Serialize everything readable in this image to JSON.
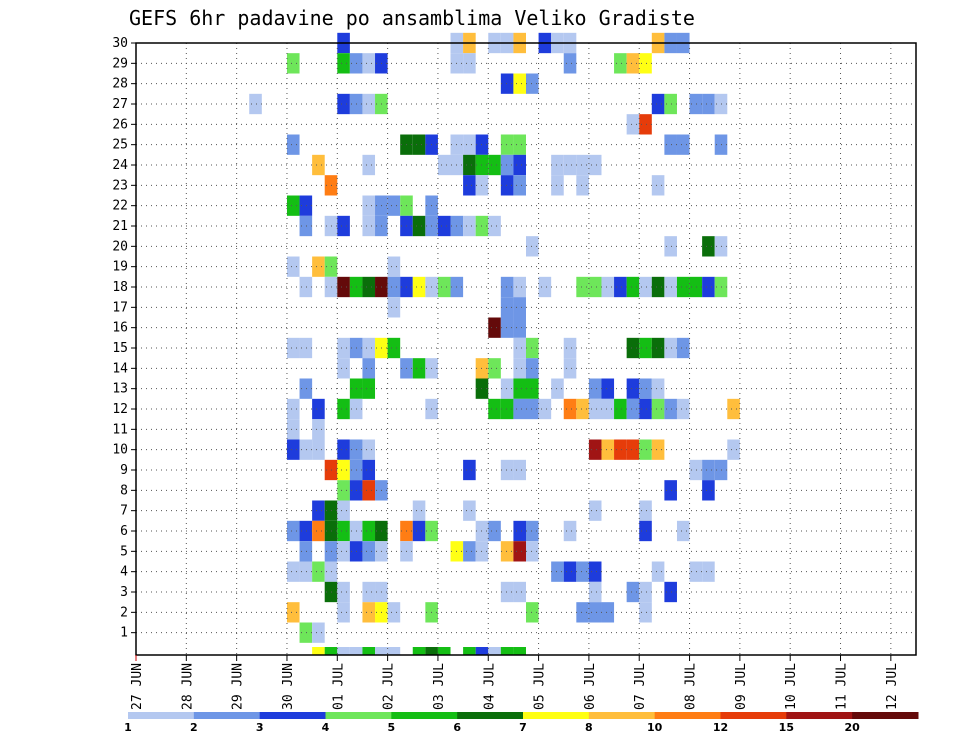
{
  "chart_data": {
    "type": "heatmap",
    "title": "GEFS 6hr padavine po ansamblima Veliko Gradiste",
    "xlabel": "",
    "ylabel": "",
    "x_tick_labels": [
      "27 JUN",
      "28 JUN",
      "29 JUN",
      "30 JUN",
      "01 JUL",
      "02 JUL",
      "03 JUL",
      "04 JUL",
      "05 JUL",
      "06 JUL",
      "07 JUL",
      "08 JUL",
      "09 JUL",
      "10 JUL",
      "11 JUL",
      "12 JUL"
    ],
    "xlim": [
      0,
      15.5
    ],
    "y_tick_labels": [
      "1",
      "2",
      "3",
      "4",
      "5",
      "6",
      "7",
      "8",
      "9",
      "10",
      "11",
      "12",
      "13",
      "14",
      "15",
      "16",
      "17",
      "18",
      "19",
      "20",
      "21",
      "22",
      "23",
      "24",
      "25",
      "26",
      "27",
      "28",
      "29",
      "30"
    ],
    "ylim": [
      0,
      30
    ],
    "grid": true,
    "step_hours": 6,
    "legend": {
      "placement": "bottom",
      "labels": [
        "1",
        "2",
        "3",
        "4",
        "5",
        "6",
        "7",
        "8",
        "10",
        "12",
        "15",
        "20"
      ],
      "colors": [
        "#b4c8f0",
        "#6e96e6",
        "#1e3cdc",
        "#6ee65a",
        "#14be14",
        "#0a6e0a",
        "#ffff14",
        "#ffbe3c",
        "#ff7d14",
        "#e63c0a",
        "#a01414",
        "#640a0a"
      ]
    },
    "colors": [
      "#b4c8f0",
      "#6e96e6",
      "#1e3cdc",
      "#6ee65a",
      "#14be14",
      "#0a6e0a",
      "#ffff14",
      "#ffbe3c",
      "#ff7d14",
      "#e63c0a",
      "#a01414",
      "#640a0a"
    ],
    "cells": [
      [
        30,
        16,
        3
      ],
      [
        30,
        25,
        1
      ],
      [
        30,
        26,
        8
      ],
      [
        30,
        28,
        1
      ],
      [
        30,
        29,
        1
      ],
      [
        30,
        30,
        8
      ],
      [
        30,
        32,
        3
      ],
      [
        30,
        33,
        1
      ],
      [
        30,
        34,
        1
      ],
      [
        30,
        41,
        8
      ],
      [
        30,
        42,
        2
      ],
      [
        30,
        43,
        2
      ],
      [
        29,
        12,
        4
      ],
      [
        29,
        16,
        5
      ],
      [
        29,
        17,
        2
      ],
      [
        29,
        18,
        1
      ],
      [
        29,
        19,
        3
      ],
      [
        29,
        25,
        1
      ],
      [
        29,
        26,
        1
      ],
      [
        29,
        34,
        2
      ],
      [
        29,
        38,
        4
      ],
      [
        29,
        39,
        8
      ],
      [
        29,
        40,
        7
      ],
      [
        28,
        29,
        3
      ],
      [
        28,
        30,
        7
      ],
      [
        28,
        31,
        2
      ],
      [
        27,
        9,
        1
      ],
      [
        27,
        16,
        3
      ],
      [
        27,
        17,
        2
      ],
      [
        27,
        18,
        1
      ],
      [
        27,
        19,
        4
      ],
      [
        27,
        41,
        3
      ],
      [
        27,
        42,
        4
      ],
      [
        27,
        44,
        2
      ],
      [
        27,
        45,
        2
      ],
      [
        27,
        46,
        1
      ],
      [
        26,
        39,
        1
      ],
      [
        26,
        40,
        10
      ],
      [
        25,
        12,
        2
      ],
      [
        25,
        21,
        6
      ],
      [
        25,
        22,
        6
      ],
      [
        25,
        23,
        3
      ],
      [
        25,
        25,
        1
      ],
      [
        25,
        26,
        1
      ],
      [
        25,
        27,
        3
      ],
      [
        25,
        29,
        4
      ],
      [
        25,
        30,
        4
      ],
      [
        25,
        42,
        2
      ],
      [
        25,
        43,
        2
      ],
      [
        25,
        46,
        2
      ],
      [
        24,
        14,
        8
      ],
      [
        24,
        18,
        1
      ],
      [
        24,
        24,
        1
      ],
      [
        24,
        25,
        1
      ],
      [
        24,
        26,
        6
      ],
      [
        24,
        27,
        5
      ],
      [
        24,
        28,
        5
      ],
      [
        24,
        29,
        2
      ],
      [
        24,
        30,
        3
      ],
      [
        24,
        33,
        1
      ],
      [
        24,
        34,
        1
      ],
      [
        24,
        35,
        1
      ],
      [
        24,
        36,
        1
      ],
      [
        23,
        15,
        9
      ],
      [
        23,
        26,
        3
      ],
      [
        23,
        27,
        1
      ],
      [
        23,
        29,
        3
      ],
      [
        23,
        30,
        2
      ],
      [
        23,
        33,
        1
      ],
      [
        23,
        35,
        1
      ],
      [
        23,
        41,
        1
      ],
      [
        22,
        12,
        5
      ],
      [
        22,
        13,
        3
      ],
      [
        22,
        18,
        1
      ],
      [
        22,
        19,
        2
      ],
      [
        22,
        20,
        2
      ],
      [
        22,
        21,
        4
      ],
      [
        22,
        23,
        2
      ],
      [
        21,
        13,
        2
      ],
      [
        21,
        15,
        1
      ],
      [
        21,
        16,
        3
      ],
      [
        21,
        18,
        1
      ],
      [
        21,
        19,
        2
      ],
      [
        21,
        21,
        3
      ],
      [
        21,
        22,
        6
      ],
      [
        21,
        23,
        2
      ],
      [
        21,
        24,
        3
      ],
      [
        21,
        25,
        2
      ],
      [
        21,
        26,
        1
      ],
      [
        21,
        27,
        4
      ],
      [
        21,
        28,
        1
      ],
      [
        20,
        31,
        1
      ],
      [
        20,
        42,
        1
      ],
      [
        20,
        45,
        6
      ],
      [
        20,
        46,
        1
      ],
      [
        19,
        12,
        1
      ],
      [
        19,
        14,
        8
      ],
      [
        19,
        15,
        4
      ],
      [
        19,
        20,
        1
      ],
      [
        18,
        13,
        1
      ],
      [
        18,
        15,
        1
      ],
      [
        18,
        16,
        12
      ],
      [
        18,
        17,
        5
      ],
      [
        18,
        18,
        6
      ],
      [
        18,
        19,
        12
      ],
      [
        18,
        20,
        2
      ],
      [
        18,
        21,
        3
      ],
      [
        18,
        22,
        7
      ],
      [
        18,
        23,
        1
      ],
      [
        18,
        24,
        4
      ],
      [
        18,
        25,
        2
      ],
      [
        18,
        29,
        2
      ],
      [
        18,
        30,
        1
      ],
      [
        18,
        32,
        1
      ],
      [
        18,
        35,
        4
      ],
      [
        18,
        36,
        4
      ],
      [
        18,
        37,
        1
      ],
      [
        18,
        38,
        3
      ],
      [
        18,
        39,
        5
      ],
      [
        18,
        40,
        1
      ],
      [
        18,
        41,
        6
      ],
      [
        18,
        42,
        1
      ],
      [
        18,
        43,
        5
      ],
      [
        18,
        44,
        5
      ],
      [
        18,
        45,
        3
      ],
      [
        18,
        46,
        4
      ],
      [
        17,
        20,
        1
      ],
      [
        17,
        29,
        2
      ],
      [
        17,
        30,
        2
      ],
      [
        16,
        28,
        12
      ],
      [
        16,
        29,
        2
      ],
      [
        16,
        30,
        2
      ],
      [
        15,
        12,
        1
      ],
      [
        15,
        13,
        1
      ],
      [
        15,
        16,
        1
      ],
      [
        15,
        17,
        2
      ],
      [
        15,
        18,
        1
      ],
      [
        15,
        19,
        7
      ],
      [
        15,
        20,
        5
      ],
      [
        15,
        30,
        1
      ],
      [
        15,
        31,
        4
      ],
      [
        15,
        34,
        1
      ],
      [
        15,
        39,
        6
      ],
      [
        15,
        40,
        5
      ],
      [
        15,
        41,
        6
      ],
      [
        15,
        42,
        1
      ],
      [
        15,
        43,
        2
      ],
      [
        14,
        16,
        1
      ],
      [
        14,
        18,
        2
      ],
      [
        14,
        21,
        2
      ],
      [
        14,
        22,
        5
      ],
      [
        14,
        23,
        1
      ],
      [
        14,
        27,
        8
      ],
      [
        14,
        28,
        4
      ],
      [
        14,
        30,
        1
      ],
      [
        14,
        31,
        2
      ],
      [
        14,
        34,
        1
      ],
      [
        13,
        13,
        2
      ],
      [
        13,
        17,
        5
      ],
      [
        13,
        18,
        5
      ],
      [
        13,
        27,
        6
      ],
      [
        13,
        29,
        1
      ],
      [
        13,
        30,
        5
      ],
      [
        13,
        31,
        5
      ],
      [
        13,
        33,
        1
      ],
      [
        13,
        36,
        2
      ],
      [
        13,
        37,
        3
      ],
      [
        13,
        39,
        3
      ],
      [
        13,
        40,
        2
      ],
      [
        13,
        41,
        1
      ],
      [
        12,
        12,
        1
      ],
      [
        12,
        14,
        3
      ],
      [
        12,
        16,
        5
      ],
      [
        12,
        17,
        1
      ],
      [
        12,
        23,
        1
      ],
      [
        12,
        28,
        5
      ],
      [
        12,
        29,
        5
      ],
      [
        12,
        30,
        2
      ],
      [
        12,
        31,
        2
      ],
      [
        12,
        32,
        1
      ],
      [
        12,
        34,
        9
      ],
      [
        12,
        35,
        8
      ],
      [
        12,
        36,
        1
      ],
      [
        12,
        37,
        1
      ],
      [
        12,
        38,
        5
      ],
      [
        12,
        39,
        2
      ],
      [
        12,
        40,
        3
      ],
      [
        12,
        41,
        4
      ],
      [
        12,
        42,
        2
      ],
      [
        12,
        43,
        1
      ],
      [
        12,
        47,
        8
      ],
      [
        11,
        12,
        1
      ],
      [
        11,
        14,
        1
      ],
      [
        10,
        12,
        3
      ],
      [
        10,
        13,
        1
      ],
      [
        10,
        14,
        1
      ],
      [
        10,
        16,
        3
      ],
      [
        10,
        17,
        2
      ],
      [
        10,
        18,
        1
      ],
      [
        10,
        36,
        11
      ],
      [
        10,
        37,
        8
      ],
      [
        10,
        38,
        10
      ],
      [
        10,
        39,
        10
      ],
      [
        10,
        40,
        4
      ],
      [
        10,
        41,
        8
      ],
      [
        10,
        47,
        1
      ],
      [
        9,
        15,
        10
      ],
      [
        9,
        16,
        7
      ],
      [
        9,
        17,
        2
      ],
      [
        9,
        18,
        3
      ],
      [
        9,
        26,
        3
      ],
      [
        9,
        29,
        1
      ],
      [
        9,
        30,
        1
      ],
      [
        9,
        44,
        1
      ],
      [
        9,
        45,
        2
      ],
      [
        9,
        46,
        2
      ],
      [
        8,
        16,
        4
      ],
      [
        8,
        17,
        3
      ],
      [
        8,
        18,
        10
      ],
      [
        8,
        19,
        2
      ],
      [
        8,
        42,
        3
      ],
      [
        8,
        45,
        3
      ],
      [
        7,
        14,
        3
      ],
      [
        7,
        15,
        6
      ],
      [
        7,
        16,
        1
      ],
      [
        7,
        22,
        1
      ],
      [
        7,
        26,
        1
      ],
      [
        7,
        36,
        1
      ],
      [
        7,
        40,
        1
      ],
      [
        6,
        12,
        2
      ],
      [
        6,
        13,
        3
      ],
      [
        6,
        14,
        9
      ],
      [
        6,
        15,
        6
      ],
      [
        6,
        16,
        5
      ],
      [
        6,
        17,
        1
      ],
      [
        6,
        18,
        5
      ],
      [
        6,
        19,
        6
      ],
      [
        6,
        21,
        9
      ],
      [
        6,
        22,
        3
      ],
      [
        6,
        23,
        4
      ],
      [
        6,
        27,
        1
      ],
      [
        6,
        28,
        2
      ],
      [
        6,
        30,
        3
      ],
      [
        6,
        31,
        2
      ],
      [
        6,
        34,
        1
      ],
      [
        6,
        40,
        3
      ],
      [
        6,
        43,
        1
      ],
      [
        5,
        13,
        2
      ],
      [
        5,
        15,
        2
      ],
      [
        5,
        16,
        1
      ],
      [
        5,
        17,
        3
      ],
      [
        5,
        18,
        2
      ],
      [
        5,
        19,
        1
      ],
      [
        5,
        21,
        1
      ],
      [
        5,
        25,
        7
      ],
      [
        5,
        26,
        2
      ],
      [
        5,
        27,
        1
      ],
      [
        5,
        29,
        8
      ],
      [
        5,
        30,
        11
      ],
      [
        5,
        31,
        1
      ],
      [
        4,
        12,
        1
      ],
      [
        4,
        13,
        1
      ],
      [
        4,
        14,
        4
      ],
      [
        4,
        15,
        1
      ],
      [
        4,
        33,
        2
      ],
      [
        4,
        34,
        3
      ],
      [
        4,
        35,
        2
      ],
      [
        4,
        36,
        3
      ],
      [
        4,
        41,
        1
      ],
      [
        4,
        44,
        1
      ],
      [
        4,
        45,
        1
      ],
      [
        3,
        15,
        6
      ],
      [
        3,
        16,
        1
      ],
      [
        3,
        18,
        1
      ],
      [
        3,
        19,
        1
      ],
      [
        3,
        29,
        1
      ],
      [
        3,
        30,
        1
      ],
      [
        3,
        36,
        1
      ],
      [
        3,
        39,
        2
      ],
      [
        3,
        40,
        1
      ],
      [
        3,
        42,
        3
      ],
      [
        2,
        12,
        8
      ],
      [
        2,
        16,
        1
      ],
      [
        2,
        18,
        8
      ],
      [
        2,
        19,
        7
      ],
      [
        2,
        20,
        1
      ],
      [
        2,
        23,
        4
      ],
      [
        2,
        31,
        4
      ],
      [
        2,
        35,
        2
      ],
      [
        2,
        36,
        2
      ],
      [
        2,
        37,
        2
      ],
      [
        2,
        40,
        1
      ],
      [
        1,
        13,
        4
      ],
      [
        1,
        14,
        1
      ],
      [
        0,
        14,
        7
      ],
      [
        0,
        15,
        5
      ],
      [
        0,
        16,
        1
      ],
      [
        0,
        17,
        1
      ],
      [
        0,
        18,
        5
      ],
      [
        0,
        19,
        1
      ],
      [
        0,
        20,
        1
      ],
      [
        0,
        22,
        5
      ],
      [
        0,
        23,
        6
      ],
      [
        0,
        24,
        5
      ],
      [
        0,
        26,
        5
      ],
      [
        0,
        27,
        3
      ],
      [
        0,
        28,
        1
      ],
      [
        0,
        29,
        5
      ],
      [
        0,
        30,
        5
      ]
    ]
  }
}
